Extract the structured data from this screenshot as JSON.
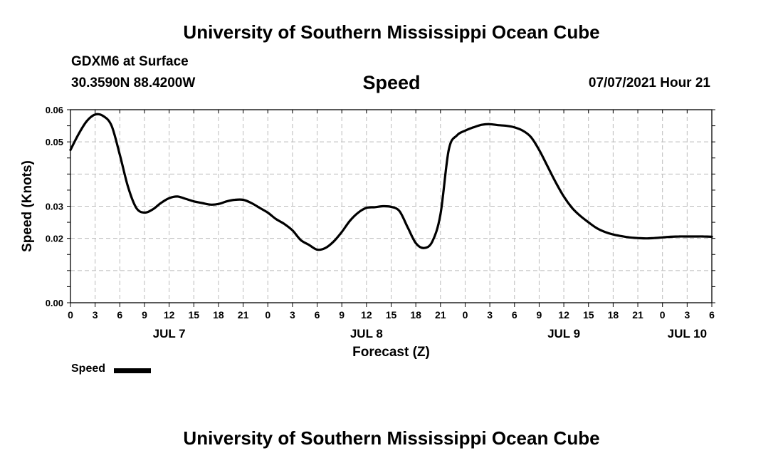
{
  "header": {
    "title_top": "University of Southern Mississippi Ocean Cube",
    "station": "GDXM6 at Surface",
    "coords": "30.3590N  88.4200W",
    "chart_title": "Speed",
    "datetime": "07/07/2021 Hour 21"
  },
  "footer": {
    "title_bottom": "University of Southern Mississippi Ocean Cube"
  },
  "legend": {
    "label": "Speed"
  },
  "colors": {
    "line": "#000000",
    "grid": "#bbbbbb"
  },
  "chart_data": {
    "type": "line",
    "title": "Speed",
    "xlabel": "Forecast (Z)",
    "ylabel": "Speed (Knots)",
    "xlim": [
      0,
      78
    ],
    "ylim": [
      0.0,
      0.06
    ],
    "grid": true,
    "legend_position": "bottom-left",
    "x_ticks": [
      0,
      3,
      6,
      9,
      12,
      15,
      18,
      21,
      24,
      27,
      30,
      33,
      36,
      39,
      42,
      45,
      48,
      51,
      54,
      57,
      60,
      63,
      66,
      69,
      72,
      75,
      78
    ],
    "x_tick_labels": [
      "0",
      "3",
      "6",
      "9",
      "12",
      "15",
      "18",
      "21",
      "0",
      "3",
      "6",
      "9",
      "12",
      "15",
      "18",
      "21",
      "0",
      "3",
      "6",
      "9",
      "12",
      "15",
      "18",
      "21",
      "0",
      "3",
      "6"
    ],
    "y_ticks": [
      0.0,
      0.02,
      0.03,
      0.05,
      0.06
    ],
    "y_tick_labels": [
      "0.00",
      "0.02",
      "0.03",
      "0.05",
      "0.06"
    ],
    "date_labels": [
      {
        "text": "JUL 7",
        "x": 12
      },
      {
        "text": "JUL 8",
        "x": 36
      },
      {
        "text": "JUL 9",
        "x": 60
      },
      {
        "text": "JUL 10",
        "x": 75
      }
    ],
    "series": [
      {
        "name": "Speed",
        "x": [
          0,
          1,
          2,
          3,
          4,
          5,
          6,
          7,
          8,
          9,
          10,
          11,
          12,
          13,
          14,
          15,
          16,
          17,
          18,
          19,
          20,
          21,
          22,
          23,
          24,
          25,
          26,
          27,
          28,
          29,
          30,
          31,
          32,
          33,
          34,
          35,
          36,
          37,
          38,
          39,
          40,
          41,
          42,
          43,
          44,
          45,
          46,
          47,
          48,
          49,
          50,
          51,
          52,
          53,
          54,
          55,
          56,
          57,
          58,
          59,
          60,
          61,
          62,
          63,
          64,
          65,
          66,
          67,
          68,
          69,
          70,
          71,
          72,
          73,
          74,
          75,
          76,
          77,
          78
        ],
        "values": [
          0.0475,
          0.0525,
          0.0565,
          0.0585,
          0.058,
          0.055,
          0.046,
          0.036,
          0.0295,
          0.028,
          0.029,
          0.031,
          0.0325,
          0.033,
          0.0323,
          0.0315,
          0.031,
          0.0305,
          0.0307,
          0.0315,
          0.032,
          0.032,
          0.031,
          0.0295,
          0.028,
          0.026,
          0.0245,
          0.0225,
          0.0195,
          0.018,
          0.0165,
          0.017,
          0.019,
          0.022,
          0.0255,
          0.028,
          0.0295,
          0.0297,
          0.03,
          0.0298,
          0.0285,
          0.0235,
          0.0185,
          0.017,
          0.019,
          0.0275,
          0.0475,
          0.052,
          0.0535,
          0.0545,
          0.0553,
          0.0555,
          0.0552,
          0.055,
          0.0545,
          0.0535,
          0.0515,
          0.0475,
          0.0425,
          0.0375,
          0.033,
          0.0295,
          0.027,
          0.025,
          0.0232,
          0.022,
          0.0212,
          0.0207,
          0.0203,
          0.0201,
          0.02,
          0.0201,
          0.0203,
          0.0205,
          0.0206,
          0.0206,
          0.0206,
          0.0206,
          0.0205
        ]
      }
    ]
  }
}
